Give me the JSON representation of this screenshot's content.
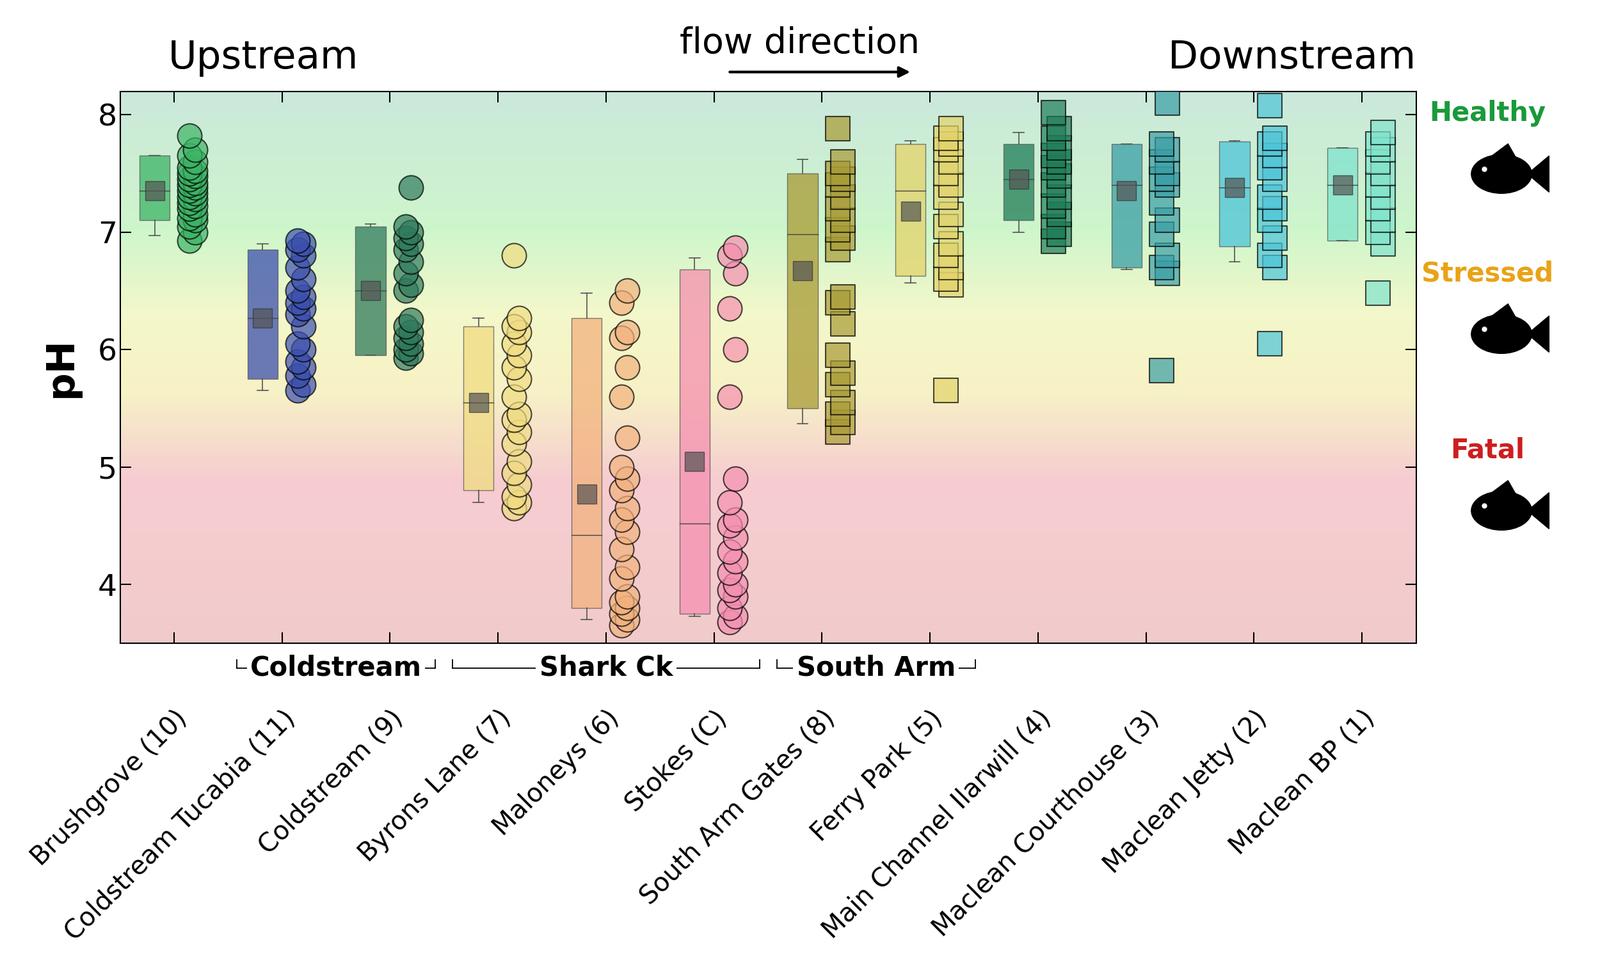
{
  "chart_data": {
    "type": "box",
    "y_label": "pH",
    "ylim": [
      3.5,
      8.2
    ],
    "yticks": [
      4,
      5,
      6,
      7,
      8
    ],
    "header_left": "Upstream",
    "header_right": "Downstream",
    "header_center": "flow direction",
    "zones": [
      {
        "label": "Healthy",
        "color": "#1a9a3a"
      },
      {
        "label": "Stressed",
        "color": "#e8a317"
      },
      {
        "label": "Fatal",
        "color": "#cc1f1f"
      }
    ],
    "groups": [
      {
        "label": "Coldstream",
        "first": "Coldstream Tucabia (11)",
        "last": "Coldstream (9)"
      },
      {
        "label": "Shark Ck",
        "first": "Byrons Lane (7)",
        "last": "Stokes (C)"
      },
      {
        "label": "South Arm",
        "first": "South Arm Gates (8)",
        "last": "Ferry Park (5)"
      }
    ],
    "sites": [
      {
        "name": "Brushgrove (10)",
        "color": "#3cb465",
        "marker": "circle",
        "q1": 7.1,
        "q3": 7.65,
        "median": 7.35,
        "mean": 7.35,
        "whisker_low": 6.97,
        "whisker_high": 7.65,
        "values": [
          6.93,
          7.0,
          7.05,
          7.1,
          7.12,
          7.15,
          7.2,
          7.22,
          7.25,
          7.28,
          7.3,
          7.33,
          7.35,
          7.38,
          7.4,
          7.42,
          7.45,
          7.48,
          7.5,
          7.52,
          7.55,
          7.6,
          7.65,
          7.7,
          7.82
        ]
      },
      {
        "name": "Coldstream Tucabia (11)",
        "color": "#3b4fae",
        "marker": "circle",
        "q1": 5.75,
        "q3": 6.85,
        "median": 6.27,
        "mean": 6.27,
        "whisker_low": 5.65,
        "whisker_high": 6.9,
        "values": [
          5.65,
          5.7,
          5.78,
          5.85,
          5.9,
          6.0,
          6.05,
          6.2,
          6.3,
          6.35,
          6.4,
          6.45,
          6.5,
          6.6,
          6.7,
          6.8,
          6.85,
          6.9,
          6.93
        ]
      },
      {
        "name": "Coldstream (9)",
        "color": "#2f7a5c",
        "marker": "circle",
        "q1": 5.95,
        "q3": 7.05,
        "median": 6.5,
        "mean": 6.5,
        "whisker_low": 5.95,
        "whisker_high": 7.07,
        "values": [
          5.93,
          5.97,
          6.0,
          6.05,
          6.1,
          6.15,
          6.2,
          6.25,
          6.5,
          6.55,
          6.65,
          6.75,
          6.85,
          6.9,
          6.95,
          7.0,
          7.05,
          7.38
        ]
      },
      {
        "name": "Byrons Lane (7)",
        "color": "#f0dc82",
        "marker": "circle",
        "q1": 4.8,
        "q3": 6.2,
        "median": 5.55,
        "mean": 5.55,
        "whisker_low": 4.7,
        "whisker_high": 6.27,
        "values": [
          4.65,
          4.7,
          4.75,
          4.85,
          4.95,
          5.05,
          5.2,
          5.3,
          5.4,
          5.45,
          5.6,
          5.75,
          5.85,
          5.95,
          6.05,
          6.15,
          6.2,
          6.27,
          6.8
        ]
      },
      {
        "name": "Maloneys (6)",
        "color": "#f2b27e",
        "marker": "circle",
        "q1": 3.8,
        "q3": 6.27,
        "median": 4.42,
        "mean": 4.77,
        "whisker_low": 3.7,
        "whisker_high": 6.48,
        "values": [
          3.65,
          3.7,
          3.75,
          3.8,
          3.85,
          3.9,
          4.05,
          4.15,
          4.3,
          4.45,
          4.55,
          4.65,
          4.8,
          4.9,
          5.0,
          5.25,
          5.6,
          5.85,
          6.1,
          6.15,
          6.4,
          6.5
        ]
      },
      {
        "name": "Stokes (C)",
        "color": "#f58fb0",
        "marker": "circle",
        "q1": 3.75,
        "q3": 6.68,
        "median": 4.52,
        "mean": 5.05,
        "whisker_low": 3.73,
        "whisker_high": 6.78,
        "values": [
          3.68,
          3.73,
          3.8,
          3.9,
          3.95,
          4.0,
          4.1,
          4.2,
          4.28,
          4.4,
          4.5,
          4.55,
          4.7,
          4.9,
          5.6,
          6.0,
          6.35,
          6.65,
          6.8,
          6.87
        ]
      },
      {
        "name": "South Arm Gates (8)",
        "color": "#a89a35",
        "marker": "square",
        "q1": 5.5,
        "q3": 7.5,
        "median": 6.98,
        "mean": 6.67,
        "whisker_low": 5.37,
        "whisker_high": 7.62,
        "values": [
          5.3,
          5.38,
          5.45,
          5.55,
          5.7,
          5.8,
          5.95,
          6.22,
          6.4,
          6.45,
          6.85,
          6.95,
          7.02,
          7.1,
          7.2,
          7.3,
          7.4,
          7.45,
          7.5,
          7.6,
          7.88
        ]
      },
      {
        "name": "Ferry Park (5)",
        "color": "#e3d36a",
        "marker": "square",
        "q1": 6.63,
        "q3": 7.75,
        "median": 7.35,
        "mean": 7.18,
        "whisker_low": 6.57,
        "whisker_high": 7.78,
        "values": [
          5.65,
          6.55,
          6.6,
          6.7,
          6.8,
          6.9,
          7.05,
          7.15,
          7.3,
          7.4,
          7.5,
          7.6,
          7.7,
          7.75,
          7.8,
          7.88
        ]
      },
      {
        "name": "Main Channel Ilarwill (4)",
        "color": "#1f7d57",
        "marker": "square",
        "q1": 7.1,
        "q3": 7.75,
        "median": 7.45,
        "mean": 7.45,
        "whisker_low": 7.0,
        "whisker_high": 7.85,
        "values": [
          6.92,
          6.98,
          7.05,
          7.15,
          7.22,
          7.3,
          7.4,
          7.48,
          7.55,
          7.6,
          7.65,
          7.72,
          7.8,
          7.88,
          8.02
        ]
      },
      {
        "name": "Maclean Courthouse (3)",
        "color": "#3a9ea6",
        "marker": "square",
        "q1": 6.7,
        "q3": 7.75,
        "median": 7.4,
        "mean": 7.35,
        "whisker_low": 6.68,
        "whisker_high": 7.75,
        "values": [
          5.82,
          6.65,
          6.7,
          6.8,
          6.98,
          7.1,
          7.25,
          7.4,
          7.45,
          7.5,
          7.6,
          7.7,
          7.75,
          8.1
        ]
      },
      {
        "name": "Maclean Jetty (2)",
        "color": "#4cc4d8",
        "marker": "square",
        "q1": 6.88,
        "q3": 7.77,
        "median": 7.38,
        "mean": 7.38,
        "whisker_low": 6.75,
        "whisker_high": 7.78,
        "values": [
          6.05,
          6.7,
          6.8,
          6.95,
          7.1,
          7.2,
          7.3,
          7.45,
          7.55,
          7.65,
          7.75,
          7.8,
          8.08
        ]
      },
      {
        "name": "Maclean BP (1)",
        "color": "#7fe3cc",
        "marker": "square",
        "q1": 6.93,
        "q3": 7.72,
        "median": 7.4,
        "mean": 7.4,
        "whisker_low": 6.93,
        "whisker_high": 7.72,
        "values": [
          6.48,
          6.9,
          7.0,
          7.1,
          7.2,
          7.3,
          7.4,
          7.5,
          7.6,
          7.7,
          7.75,
          7.85
        ]
      }
    ]
  }
}
